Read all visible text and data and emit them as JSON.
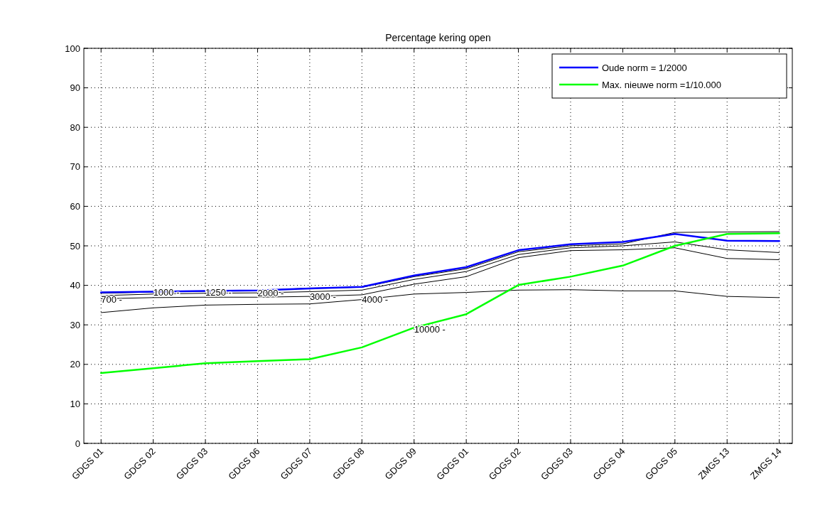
{
  "chart_data": {
    "type": "line",
    "title": "Percentage kering open",
    "categories": [
      "GDGS 01",
      "GDGS 02",
      "GDGS 03",
      "GDGS 06",
      "GDGS 07",
      "GDGS 08",
      "GDGS 09",
      "GOGS 01",
      "GOGS 02",
      "GOGS 03",
      "GOGS 04",
      "GOGS 05",
      "ZMGS 13",
      "ZMGS 14"
    ],
    "series": [
      {
        "color": "#000000",
        "values": [
          38.0,
          38.3,
          38.5,
          38.7,
          39.3,
          39.5,
          42.2,
          44.2,
          48.5,
          50.0,
          50.5,
          53.4,
          53.5,
          53.6
        ]
      },
      {
        "color": "#000000",
        "values": [
          37.4,
          37.8,
          38.0,
          38.1,
          38.4,
          38.8,
          41.5,
          43.5,
          47.8,
          49.5,
          50.0,
          51.0,
          49.0,
          48.3
        ]
      },
      {
        "color": "#000000",
        "values": [
          36.6,
          36.9,
          37.0,
          37.0,
          37.2,
          37.6,
          40.3,
          42.2,
          47.0,
          48.8,
          49.0,
          49.5,
          46.8,
          46.5
        ]
      },
      {
        "color": "#000000",
        "values": [
          33.1,
          34.3,
          35.0,
          35.2,
          35.3,
          36.4,
          37.8,
          38.2,
          38.8,
          38.9,
          38.6,
          38.6,
          37.2,
          36.9
        ]
      },
      {
        "name": "Oude norm = 1/2000",
        "color": "#0000ff",
        "values": [
          38.2,
          38.4,
          38.6,
          38.7,
          39.2,
          39.6,
          42.5,
          44.6,
          48.9,
          50.4,
          51.0,
          53.0,
          51.3,
          51.2
        ]
      },
      {
        "name": "Max. nieuwe norm =1/10.000",
        "color": "#00ff00",
        "values": [
          17.8,
          19.0,
          20.3,
          20.8,
          21.3,
          24.3,
          29.3,
          32.7,
          40.1,
          42.2,
          45.0,
          50.0,
          53.0,
          53.2
        ]
      }
    ],
    "annotations": [
      {
        "text": "700 -",
        "x": "GDGS 01",
        "y": 36.4
      },
      {
        "text": "1000 -",
        "x": "GDGS 02",
        "y": 38.2
      },
      {
        "text": "1250 -",
        "x": "GDGS 03",
        "y": 38.2
      },
      {
        "text": "2000 -",
        "x": "GDGS 06",
        "y": 38.0
      },
      {
        "text": "3000 -",
        "x": "GDGS 07",
        "y": 37.2
      },
      {
        "text": "4000 -",
        "x": "GDGS 08",
        "y": 36.4
      },
      {
        "text": "10000 -",
        "x": "GDGS 09",
        "y": 28.8
      }
    ],
    "ylim": [
      0,
      100
    ],
    "yticks": [
      0,
      10,
      20,
      30,
      40,
      50,
      60,
      70,
      80,
      90,
      100
    ],
    "grid": true,
    "legend": "top right"
  }
}
